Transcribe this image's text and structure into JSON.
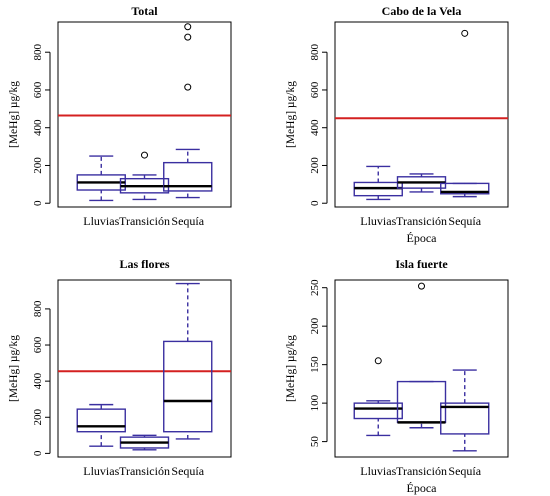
{
  "style": {
    "box_color": "#3a2fa0",
    "median_color": "#000000",
    "reference_line_color": "#d42020",
    "axis_color": "#000000"
  },
  "chart_data": [
    {
      "type": "box",
      "title": "Total",
      "xlabel": "",
      "ylabel": "[MeHg] µg/kg",
      "categories": [
        "Lluvias",
        "Transición",
        "Sequía"
      ],
      "ylim": [
        -20,
        960
      ],
      "yticks": [
        0,
        200,
        400,
        600,
        800
      ],
      "reference_line": 465,
      "boxes": [
        {
          "whisker_low": 15,
          "q1": 70,
          "median": 110,
          "q3": 150,
          "whisker_high": 250,
          "outliers": []
        },
        {
          "whisker_low": 20,
          "q1": 55,
          "median": 90,
          "q3": 130,
          "whisker_high": 150,
          "outliers": [
            255
          ]
        },
        {
          "whisker_low": 30,
          "q1": 65,
          "median": 90,
          "q3": 215,
          "whisker_high": 285,
          "outliers": [
            615,
            880,
            935
          ]
        }
      ]
    },
    {
      "type": "box",
      "title": "Cabo de la Vela",
      "xlabel": "Época",
      "ylabel": "[MeHg] µg/kg",
      "categories": [
        "Lluvias",
        "Transición",
        "Sequía"
      ],
      "ylim": [
        -20,
        960
      ],
      "yticks": [
        0,
        200,
        400,
        600,
        800
      ],
      "reference_line": 450,
      "boxes": [
        {
          "whisker_low": 20,
          "q1": 40,
          "median": 80,
          "q3": 110,
          "whisker_high": 195,
          "outliers": []
        },
        {
          "whisker_low": 60,
          "q1": 80,
          "median": 110,
          "q3": 140,
          "whisker_high": 155,
          "outliers": []
        },
        {
          "whisker_low": 35,
          "q1": 50,
          "median": 60,
          "q3": 105,
          "whisker_high": 105,
          "outliers": [
            900
          ]
        }
      ]
    },
    {
      "type": "box",
      "title": "Las flores",
      "xlabel": "",
      "ylabel": "[MeHg] µg/kg",
      "categories": [
        "Lluvias",
        "Transición",
        "Sequía"
      ],
      "ylim": [
        -20,
        960
      ],
      "yticks": [
        0,
        200,
        400,
        600,
        800
      ],
      "reference_line": 455,
      "boxes": [
        {
          "whisker_low": 40,
          "q1": 120,
          "median": 150,
          "q3": 245,
          "whisker_high": 270,
          "outliers": []
        },
        {
          "whisker_low": 20,
          "q1": 30,
          "median": 60,
          "q3": 90,
          "whisker_high": 100,
          "outliers": []
        },
        {
          "whisker_low": 80,
          "q1": 120,
          "median": 290,
          "q3": 620,
          "whisker_high": 940,
          "outliers": []
        }
      ]
    },
    {
      "type": "box",
      "title": "Isla fuerte",
      "xlabel": "Época",
      "ylabel": "[MeHg] µg/kg",
      "categories": [
        "Lluvias",
        "Transición",
        "Sequía"
      ],
      "ylim": [
        30,
        260
      ],
      "yticks": [
        50,
        100,
        150,
        200,
        250
      ],
      "reference_line": null,
      "boxes": [
        {
          "whisker_low": 58,
          "q1": 80,
          "median": 93,
          "q3": 100,
          "whisker_high": 103,
          "outliers": [
            155
          ]
        },
        {
          "whisker_low": 68,
          "q1": 75,
          "median": 75,
          "q3": 128,
          "whisker_high": 128,
          "outliers": [
            252
          ]
        },
        {
          "whisker_low": 38,
          "q1": 60,
          "median": 95,
          "q3": 100,
          "whisker_high": 143,
          "outliers": []
        }
      ]
    }
  ]
}
